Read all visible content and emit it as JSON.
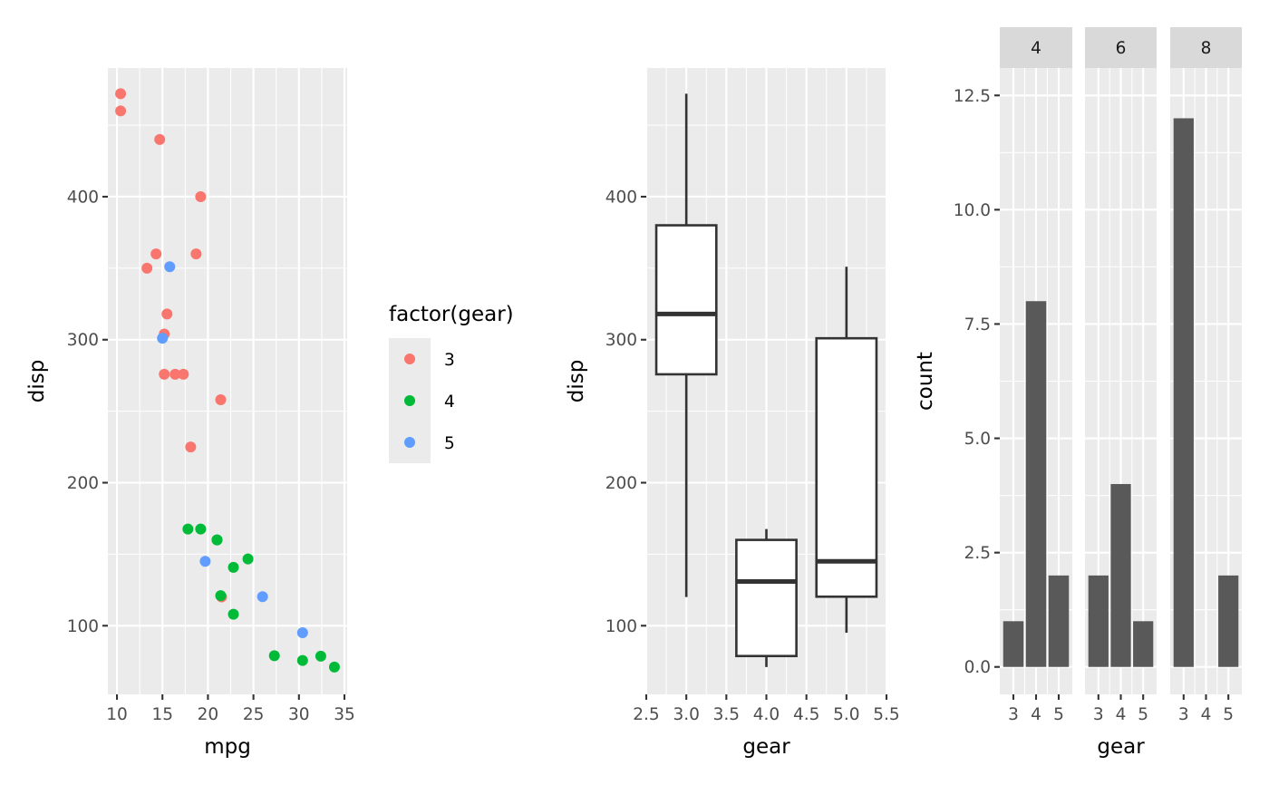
{
  "chart_data": [
    {
      "type": "scatter",
      "xlabel": "mpg",
      "ylabel": "disp",
      "xlim": [
        9.0,
        35.3
      ],
      "ylim": [
        52.0,
        490.0
      ],
      "x_ticks": [
        10,
        15,
        20,
        25,
        30,
        35
      ],
      "y_ticks": [
        100,
        200,
        300,
        400
      ],
      "legend": {
        "title": "factor(gear)",
        "placement": "right",
        "entries": [
          {
            "label": "3",
            "color": "#F8766D"
          },
          {
            "label": "4",
            "color": "#00BA38"
          },
          {
            "label": "5",
            "color": "#619CFF"
          }
        ]
      },
      "points": [
        {
          "x": 10.4,
          "y": 472,
          "g": "3"
        },
        {
          "x": 10.4,
          "y": 460,
          "g": "3"
        },
        {
          "x": 14.7,
          "y": 440,
          "g": "3"
        },
        {
          "x": 19.2,
          "y": 400,
          "g": "3"
        },
        {
          "x": 14.3,
          "y": 360,
          "g": "3"
        },
        {
          "x": 18.7,
          "y": 360,
          "g": "3"
        },
        {
          "x": 13.3,
          "y": 350,
          "g": "3"
        },
        {
          "x": 15.5,
          "y": 318,
          "g": "3"
        },
        {
          "x": 15.2,
          "y": 304,
          "g": "3"
        },
        {
          "x": 16.4,
          "y": 275.8,
          "g": "3"
        },
        {
          "x": 17.3,
          "y": 275.8,
          "g": "3"
        },
        {
          "x": 15.2,
          "y": 275.8,
          "g": "3"
        },
        {
          "x": 21.4,
          "y": 258,
          "g": "3"
        },
        {
          "x": 18.1,
          "y": 225,
          "g": "3"
        },
        {
          "x": 21.5,
          "y": 120.1,
          "g": "3"
        },
        {
          "x": 21.0,
          "y": 160,
          "g": "4"
        },
        {
          "x": 21.0,
          "y": 160,
          "g": "4"
        },
        {
          "x": 22.8,
          "y": 108,
          "g": "4"
        },
        {
          "x": 24.4,
          "y": 146.7,
          "g": "4"
        },
        {
          "x": 22.8,
          "y": 140.8,
          "g": "4"
        },
        {
          "x": 19.2,
          "y": 167.6,
          "g": "4"
        },
        {
          "x": 17.8,
          "y": 167.6,
          "g": "4"
        },
        {
          "x": 32.4,
          "y": 78.7,
          "g": "4"
        },
        {
          "x": 30.4,
          "y": 75.7,
          "g": "4"
        },
        {
          "x": 33.9,
          "y": 71.1,
          "g": "4"
        },
        {
          "x": 27.3,
          "y": 79,
          "g": "4"
        },
        {
          "x": 21.4,
          "y": 121,
          "g": "4"
        },
        {
          "x": 26.0,
          "y": 120.3,
          "g": "5"
        },
        {
          "x": 30.4,
          "y": 95.1,
          "g": "5"
        },
        {
          "x": 15.8,
          "y": 351,
          "g": "5"
        },
        {
          "x": 19.7,
          "y": 145,
          "g": "5"
        },
        {
          "x": 15.0,
          "y": 301,
          "g": "5"
        }
      ]
    },
    {
      "type": "box",
      "xlabel": "gear",
      "ylabel": "disp",
      "xlim": [
        2.5,
        5.5
      ],
      "ylim": [
        52.0,
        490.0
      ],
      "x_ticks": [
        2.5,
        3.0,
        3.5,
        4.0,
        4.5,
        5.0,
        5.5
      ],
      "x_tick_labels": [
        "2.5",
        "3.0",
        "3.5",
        "4.0",
        "4.5",
        "5.0",
        "5.5"
      ],
      "y_ticks": [
        100,
        200,
        300,
        400
      ],
      "boxes": [
        {
          "x": 3,
          "min": 120.1,
          "q1": 275.8,
          "median": 318,
          "q3": 380,
          "max": 472
        },
        {
          "x": 4,
          "min": 71.1,
          "q1": 78.8,
          "median": 130.9,
          "q3": 160,
          "max": 167.6
        },
        {
          "x": 5,
          "min": 95.1,
          "q1": 120.3,
          "median": 145,
          "q3": 301,
          "max": 351
        }
      ]
    },
    {
      "type": "bar",
      "xlabel": "gear",
      "ylabel": "count",
      "ylim": [
        -0.6,
        13.1
      ],
      "y_ticks": [
        0.0,
        2.5,
        5.0,
        7.5,
        10.0,
        12.5
      ],
      "y_tick_labels": [
        "0.0",
        "2.5",
        "5.0",
        "7.5",
        "10.0",
        "12.5"
      ],
      "categories": [
        "3",
        "4",
        "5"
      ],
      "facets": [
        {
          "label": "4",
          "values": [
            1,
            8,
            2
          ]
        },
        {
          "label": "6",
          "values": [
            2,
            4,
            1
          ]
        },
        {
          "label": "8",
          "values": [
            12,
            0,
            2
          ]
        }
      ]
    }
  ]
}
